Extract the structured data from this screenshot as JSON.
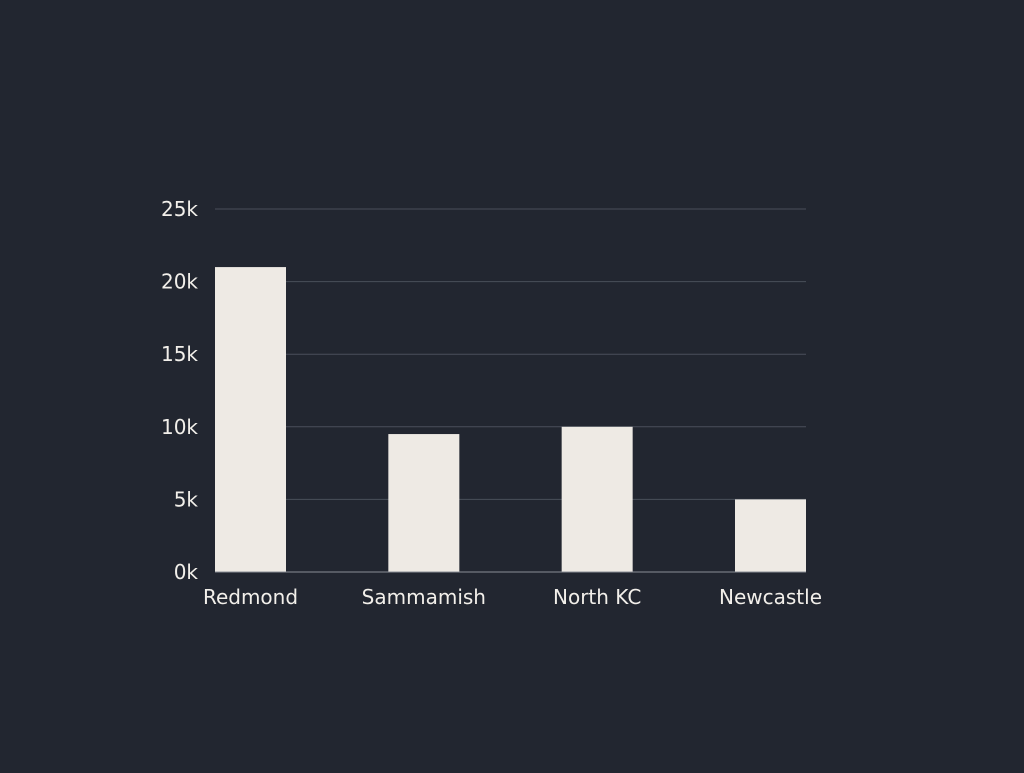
{
  "colors": {
    "background": "#222630",
    "bar": "#eeeae4",
    "gridline": "#4a4f5a",
    "axis": "#8a8e96",
    "text": "#f2efea"
  },
  "chart_data": {
    "type": "bar",
    "title": "",
    "xlabel": "",
    "ylabel": "",
    "categories": [
      "Redmond",
      "Sammamish",
      "North KC",
      "Newcastle"
    ],
    "values": [
      21000,
      9500,
      10000,
      5000
    ],
    "ylim": [
      0,
      25000
    ],
    "yticks": [
      0,
      5000,
      10000,
      15000,
      20000,
      25000
    ],
    "ytick_labels": [
      "0k",
      "5k",
      "10k",
      "15k",
      "20k",
      "25k"
    ],
    "grid": true,
    "legend": "none"
  }
}
